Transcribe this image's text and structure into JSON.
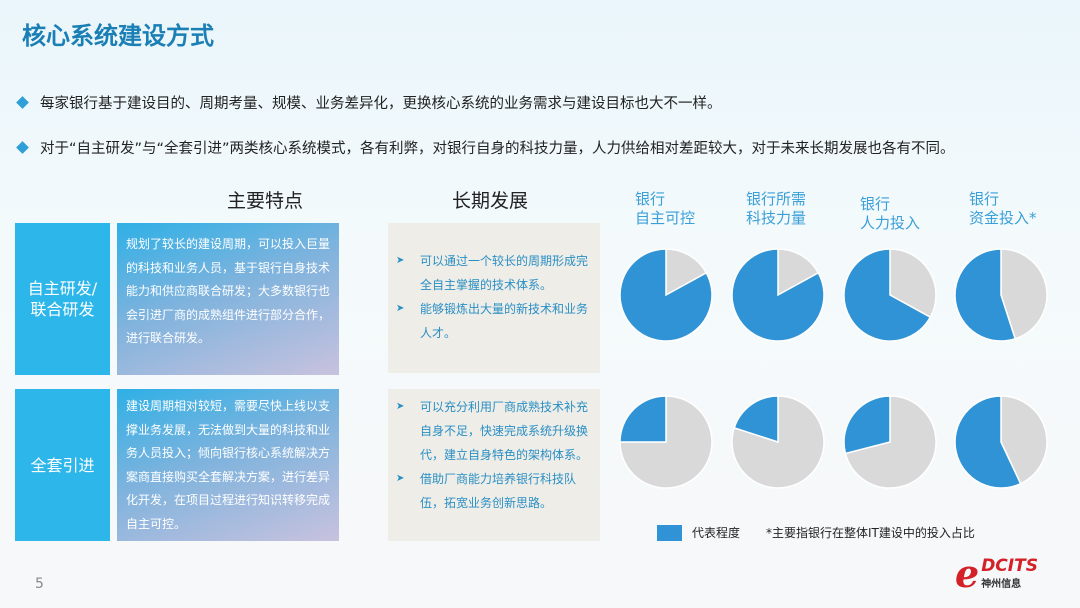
{
  "title": "核心系统建设方式",
  "bullets": [
    "每家银行基于建设目的、周期考量、规模、业务差异化，更换核心系统的业务需求与建设目标也大不一样。",
    "对于“自主研发”与“全套引进”两类核心系统模式，各有利弊，对银行自身的科技力量，人力供给相对差距较大，对于未来长期发展也各有不同。"
  ],
  "columns": {
    "features": "主要特点",
    "development": "长期发展"
  },
  "rows": [
    {
      "label": "自主研发/联合研发",
      "features": "规划了较长的建设周期，可以投入巨量的科技和业务人员，基于银行自身技术能力和供应商联合研发；大多数银行也会引进厂商的成熟组件进行部分合作，进行联合研发。",
      "development": [
        "可以通过一个较长的周期形成完全自主掌握的技术体系。",
        "能够锻炼出大量的新技术和业务人才。"
      ]
    },
    {
      "label": "全套引进",
      "features": "建设周期相对较短，需要尽快上线以支撑业务发展，无法做到大量的科技和业务人员投入；倾向银行核心系统解决方案商直接购买全套解决方案，进行差异化开发，在项目过程进行知识转移完成自主可控。",
      "development": [
        "可以充分利用厂商成熟技术补充自身不足，快速完成系统升级换代，建立自身特色的架构体系。",
        "借助厂商能力培养银行科技队伍，拓宽业务创新思路。"
      ]
    }
  ],
  "chart_data": {
    "type": "pie",
    "categories": [
      "银行\n自主可控",
      "银行所需\n科技力量",
      "银行\n人力投入",
      "银行\n资金投入*"
    ],
    "category_lines": [
      [
        "银行",
        "自主可控"
      ],
      [
        "银行所需",
        "科技力量"
      ],
      [
        "银行",
        "人力投入"
      ],
      [
        "银行",
        "资金投入*"
      ]
    ],
    "rows": [
      "自主研发/联合研发",
      "全套引进"
    ],
    "series": [
      {
        "row": "自主研发/联合研发",
        "values": [
          83,
          83,
          67,
          55
        ]
      },
      {
        "row": "全套引进",
        "values": [
          25,
          20,
          29,
          57
        ]
      }
    ],
    "unit": "%",
    "legend": {
      "label": "代表程度",
      "position": "bottom"
    },
    "footnote": "*主要指银行在整体IT建设中的投入占比",
    "colors": {
      "value": "#2f93d6",
      "rest": "#d9d9d9"
    }
  },
  "page_number": "5",
  "logo": {
    "brand": "DCITS",
    "cn": "神州信息"
  }
}
